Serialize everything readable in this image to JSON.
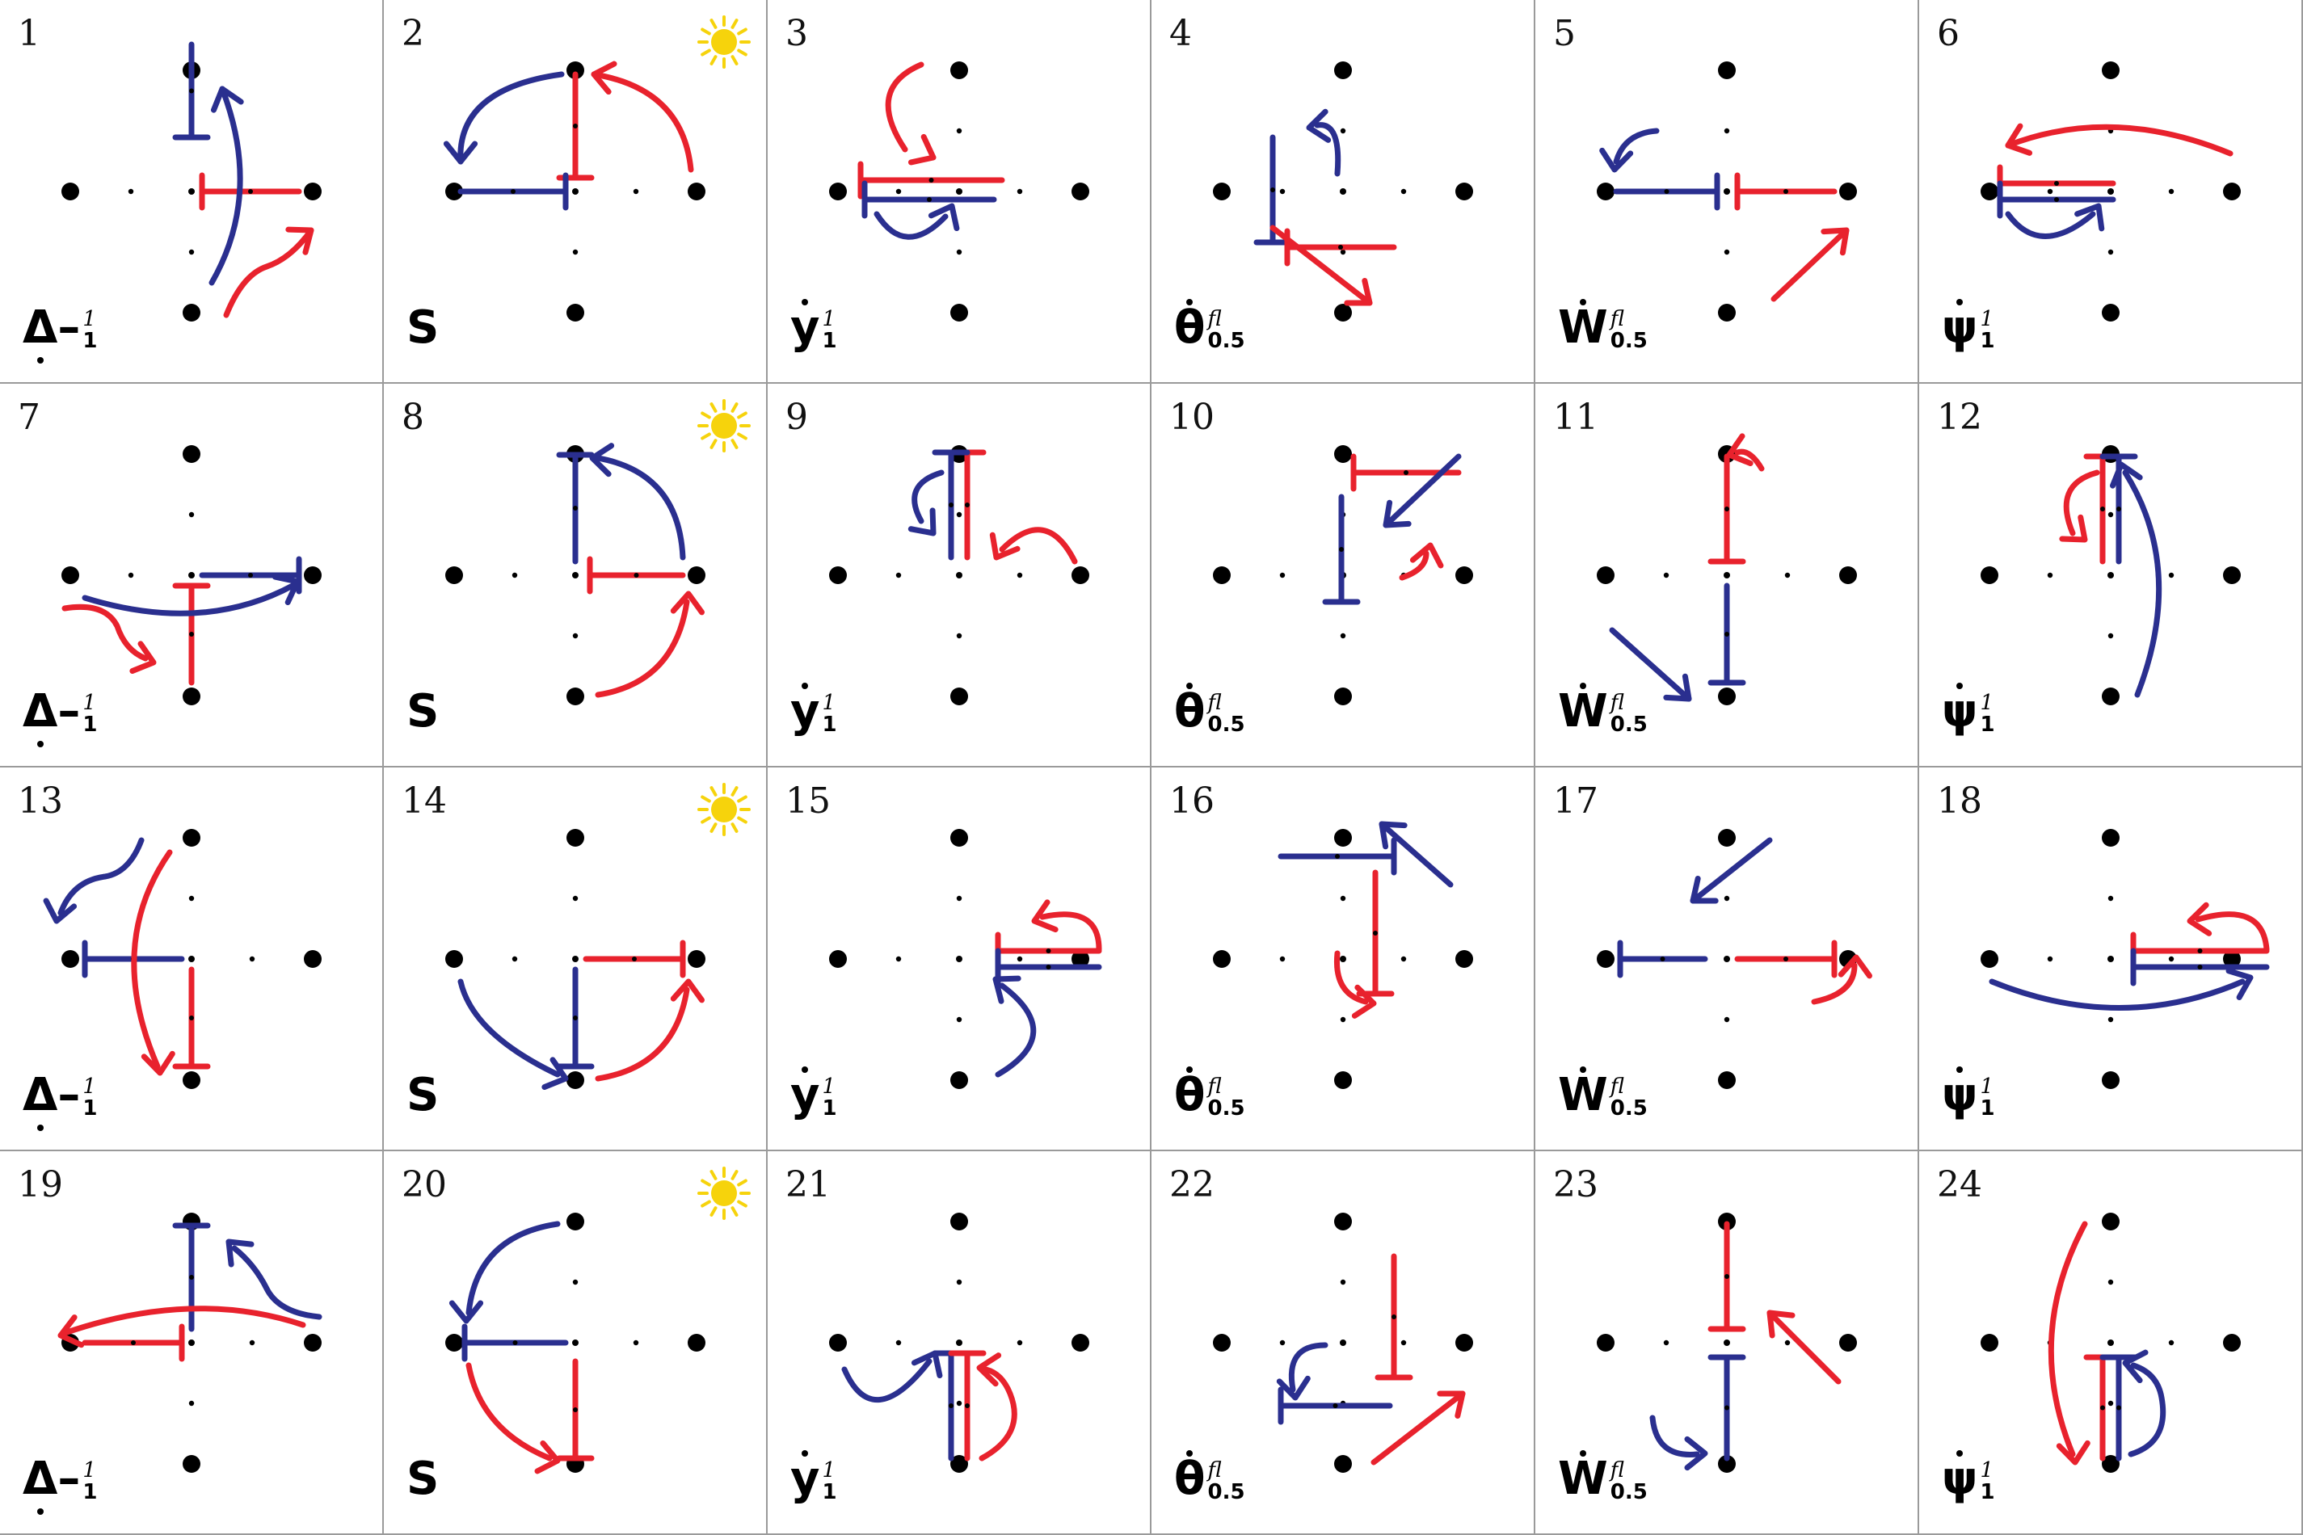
{
  "colors": {
    "red": "#e8222d",
    "blue": "#2a2f8f",
    "dot": "#000000",
    "grid_line": "#9a9a9a",
    "sun": "#f6d30c"
  },
  "cells": [
    {
      "number": "1",
      "symbol": "Δ",
      "symbol_mark": "dash-dot-below",
      "sup": "1",
      "sub": "1",
      "sun": false
    },
    {
      "number": "2",
      "symbol": "S",
      "symbol_mark": "none",
      "sup": "",
      "sub": "",
      "sun": true
    },
    {
      "number": "3",
      "symbol": "y",
      "symbol_mark": "dot-above",
      "sup": "1",
      "sub": "1",
      "sun": false
    },
    {
      "number": "4",
      "symbol": "θ",
      "symbol_mark": "dot-above",
      "sup": "fl",
      "sub": "0.5",
      "sun": false
    },
    {
      "number": "5",
      "symbol": "W",
      "symbol_mark": "dot-above",
      "sup": "fl",
      "sub": "0.5",
      "sun": false
    },
    {
      "number": "6",
      "symbol": "ψ",
      "symbol_mark": "dot-above",
      "sup": "1",
      "sub": "1",
      "sun": false
    },
    {
      "number": "7",
      "symbol": "Δ",
      "symbol_mark": "dash-dot-below",
      "sup": "1",
      "sub": "1",
      "sun": false
    },
    {
      "number": "8",
      "symbol": "S",
      "symbol_mark": "none",
      "sup": "",
      "sub": "",
      "sun": true
    },
    {
      "number": "9",
      "symbol": "y",
      "symbol_mark": "dot-above",
      "sup": "1",
      "sub": "1",
      "sun": false
    },
    {
      "number": "10",
      "symbol": "θ",
      "symbol_mark": "dot-above",
      "sup": "fl",
      "sub": "0.5",
      "sun": false
    },
    {
      "number": "11",
      "symbol": "W",
      "symbol_mark": "dot-above",
      "sup": "fl",
      "sub": "0.5",
      "sun": false
    },
    {
      "number": "12",
      "symbol": "ψ",
      "symbol_mark": "dot-above",
      "sup": "1",
      "sub": "1",
      "sun": false
    },
    {
      "number": "13",
      "symbol": "Δ",
      "symbol_mark": "dash-dot-below",
      "sup": "1",
      "sub": "1",
      "sun": false
    },
    {
      "number": "14",
      "symbol": "S",
      "symbol_mark": "none",
      "sup": "",
      "sub": "",
      "sun": true
    },
    {
      "number": "15",
      "symbol": "y",
      "symbol_mark": "dot-above",
      "sup": "1",
      "sub": "1",
      "sun": false
    },
    {
      "number": "16",
      "symbol": "θ",
      "symbol_mark": "dot-above",
      "sup": "fl",
      "sub": "0.5",
      "sun": false
    },
    {
      "number": "17",
      "symbol": "W",
      "symbol_mark": "dot-above",
      "sup": "fl",
      "sub": "0.5",
      "sun": false
    },
    {
      "number": "18",
      "symbol": "ψ",
      "symbol_mark": "dot-above",
      "sup": "1",
      "sub": "1",
      "sun": false
    },
    {
      "number": "19",
      "symbol": "Δ",
      "symbol_mark": "dash-dot-below",
      "sup": "1",
      "sub": "1",
      "sun": false
    },
    {
      "number": "20",
      "symbol": "S",
      "symbol_mark": "none",
      "sup": "",
      "sub": "",
      "sun": true
    },
    {
      "number": "21",
      "symbol": "y",
      "symbol_mark": "dot-above",
      "sup": "1",
      "sub": "1",
      "sun": false
    },
    {
      "number": "22",
      "symbol": "θ",
      "symbol_mark": "dot-above",
      "sup": "fl",
      "sub": "0.5",
      "sun": false
    },
    {
      "number": "23",
      "symbol": "W",
      "symbol_mark": "dot-above",
      "sup": "fl",
      "sub": "0.5",
      "sun": false
    },
    {
      "number": "24",
      "symbol": "ψ",
      "symbol_mark": "dot-above",
      "sup": "1",
      "sub": "1",
      "sun": false
    }
  ]
}
